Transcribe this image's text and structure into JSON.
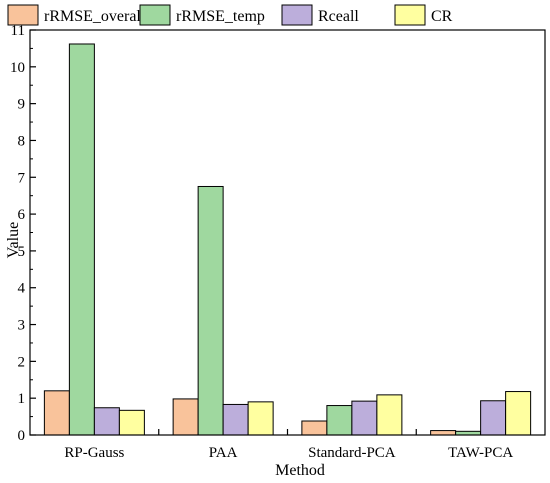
{
  "chart_data": {
    "type": "bar",
    "title": "",
    "xlabel": "Method",
    "ylabel": "Value",
    "categories": [
      "RP-Gauss",
      "PAA",
      "Standard-PCA",
      "TAW-PCA"
    ],
    "ylim": [
      0,
      11
    ],
    "yticks": [
      "0",
      "1",
      "2",
      "3",
      "4",
      "5",
      "6",
      "7",
      "8",
      "9",
      "10",
      "11"
    ],
    "grid": false,
    "legend_position": "top",
    "series": [
      {
        "name": "rRMSE_overall",
        "color": "#F9C39B",
        "values": [
          1.2,
          0.98,
          0.38,
          0.12
        ]
      },
      {
        "name": "rRMSE_temp",
        "color": "#9FD89F",
        "values": [
          10.62,
          6.75,
          0.8,
          0.1
        ]
      },
      {
        "name": "Rceall",
        "color": "#BCAEDB",
        "values": [
          0.74,
          0.83,
          0.92,
          0.93
        ]
      },
      {
        "name": "CR",
        "color": "#FFFFA0",
        "values": [
          0.67,
          0.9,
          1.09,
          1.18
        ]
      }
    ]
  }
}
